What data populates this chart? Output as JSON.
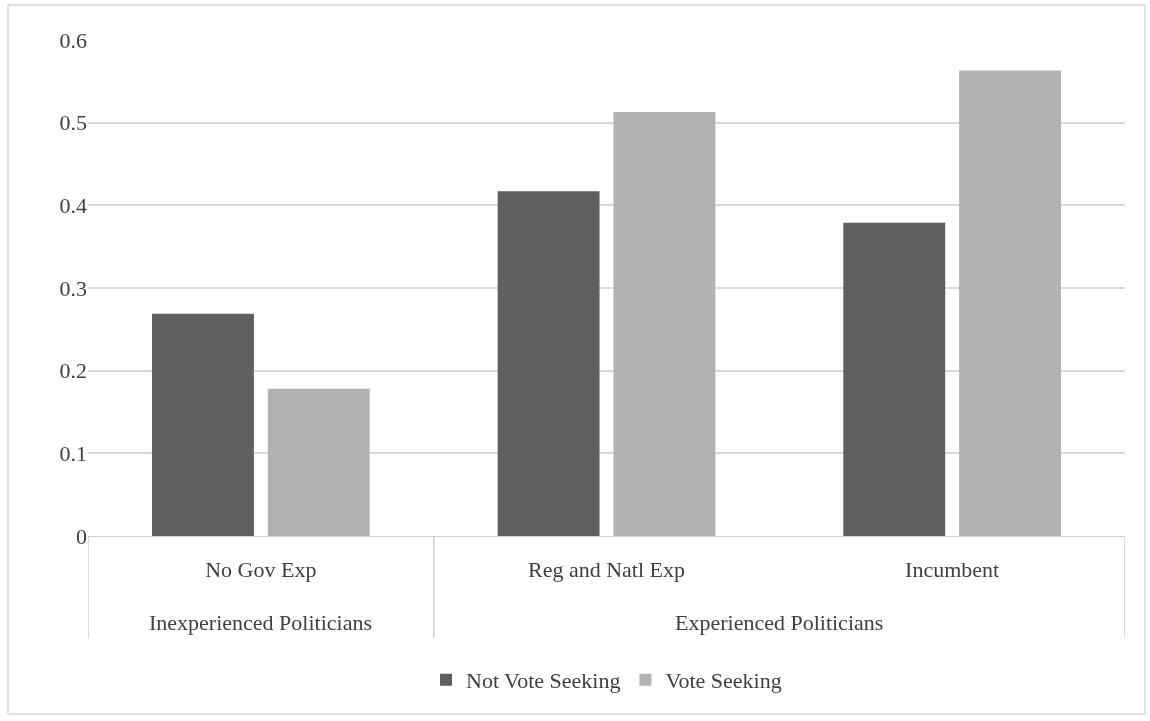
{
  "chart_data": {
    "type": "bar",
    "categories": [
      "No Gov Exp",
      "Reg and Natl Exp",
      "Incumbent"
    ],
    "series": [
      {
        "name": "Not Vote Seeking",
        "color": "#5f5f5f",
        "values": [
          0.269,
          0.417,
          0.379
        ]
      },
      {
        "name": "Vote Seeking",
        "color": "#b2b2b2",
        "values": [
          0.178,
          0.513,
          0.563
        ]
      }
    ],
    "annotations": [
      "Inexperienced Politicians",
      "Experienced Politicians"
    ],
    "ylim": [
      0,
      0.6
    ],
    "yticks": [
      0,
      0.1,
      0.2,
      0.3,
      0.4,
      0.5,
      0.6
    ],
    "grid": "y",
    "legend": "bottom"
  }
}
